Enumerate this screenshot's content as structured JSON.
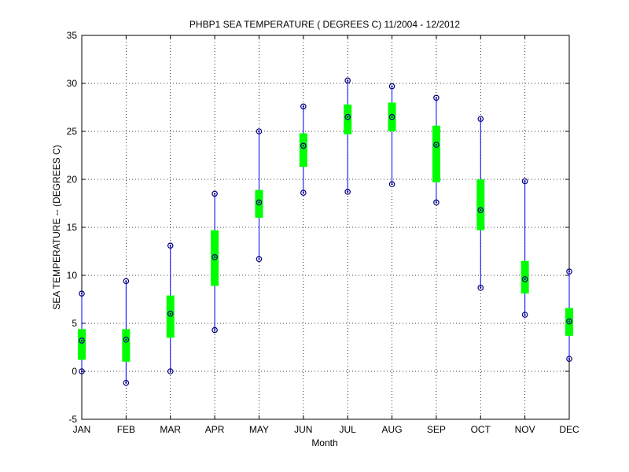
{
  "chart_data": {
    "type": "boxplot",
    "title": "PHBP1  SEA TEMPERATURE ( DEGREES C) 11/2004 - 12/2012",
    "xlabel": "Month",
    "ylabel": "SEA TEMPERATURE -- (DEGREES C)",
    "ylim": [
      -5,
      35
    ],
    "yticks": [
      -5,
      0,
      5,
      10,
      15,
      20,
      25,
      30,
      35
    ],
    "grid": true,
    "categories": [
      "JAN",
      "FEB",
      "MAR",
      "APR",
      "MAY",
      "JUN",
      "JUL",
      "AUG",
      "SEP",
      "OCT",
      "NOV",
      "DEC"
    ],
    "min": [
      0.0,
      -1.2,
      0.0,
      4.3,
      11.7,
      18.6,
      18.7,
      19.5,
      17.6,
      8.7,
      5.9,
      1.3
    ],
    "q1": [
      1.2,
      1.0,
      3.5,
      8.9,
      16.0,
      21.3,
      24.7,
      25.0,
      19.7,
      14.7,
      8.1,
      3.7
    ],
    "median": [
      3.2,
      3.3,
      6.0,
      11.9,
      17.6,
      23.5,
      26.5,
      26.5,
      23.6,
      16.8,
      9.6,
      5.2
    ],
    "q3": [
      4.4,
      4.4,
      7.9,
      14.7,
      18.9,
      24.8,
      27.8,
      28.0,
      25.6,
      20.0,
      11.5,
      6.6
    ],
    "max": [
      8.1,
      9.4,
      13.1,
      18.5,
      25.0,
      27.6,
      30.3,
      29.7,
      28.5,
      26.3,
      19.8,
      10.4
    ],
    "colors": {
      "whisker": "#0000ff",
      "box": "#00ff00",
      "marker": "#000080"
    }
  }
}
